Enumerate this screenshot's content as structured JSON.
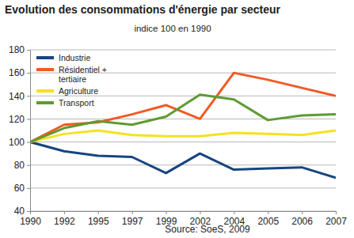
{
  "chart_data": {
    "type": "line",
    "title": "Evolution des consommations d'énergie par secteur",
    "subtitle": "indice 100 en 1990",
    "source": "Source: SoeS, 2009",
    "categories": [
      "1990",
      "1992",
      "1995",
      "1997",
      "1999",
      "2002",
      "2004",
      "2005",
      "2006",
      "2007"
    ],
    "series": [
      {
        "name": "Industrie",
        "color": "#17457f",
        "values": [
          100,
          92,
          88,
          87,
          73,
          90,
          76,
          77,
          78,
          69
        ]
      },
      {
        "name": "Résidentiel + tertiaire",
        "color": "#f15a24",
        "values": [
          100,
          115,
          117,
          124,
          132,
          120,
          160,
          154,
          147,
          140
        ]
      },
      {
        "name": "Agriculture",
        "color": "#f5e120",
        "values": [
          100,
          107,
          110,
          106,
          105,
          105,
          108,
          107,
          106,
          110
        ]
      },
      {
        "name": "Transport",
        "color": "#5e9b32",
        "values": [
          100,
          112,
          118,
          115,
          122,
          141,
          137,
          119,
          123,
          124
        ]
      }
    ],
    "ylim": [
      40,
      180
    ],
    "yticks": [
      40,
      60,
      80,
      100,
      120,
      140,
      160,
      180
    ],
    "grid": true,
    "legend": "top-left"
  }
}
